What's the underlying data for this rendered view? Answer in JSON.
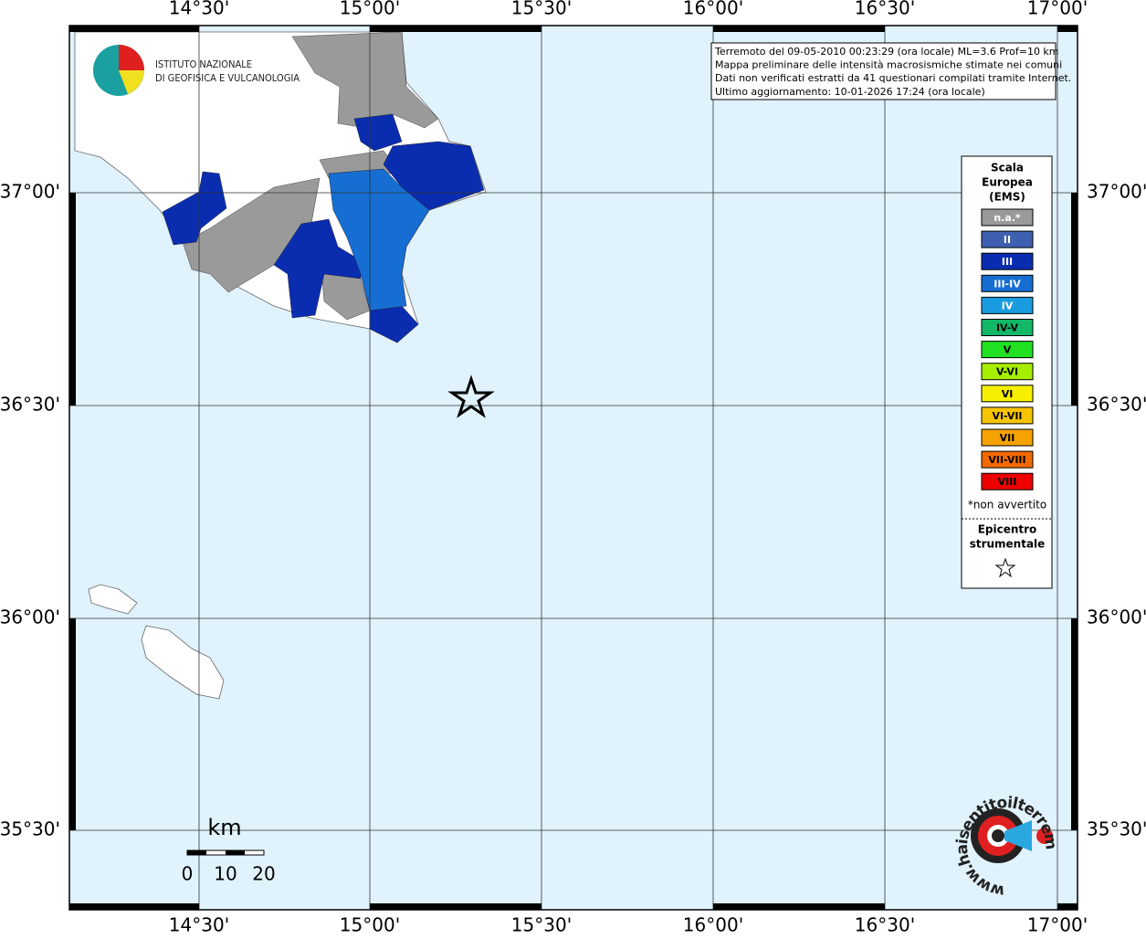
{
  "header": {
    "institute": [
      "ISTITUTO NAZIONALE",
      "DI GEOFISICA E VULCANOLOGIA"
    ]
  },
  "info": [
    "Terremoto del 09-05-2010 00:23:29 (ora locale) ML=3.6 Prof=10 km",
    "Mappa preliminare delle intensità macrosismiche stimate nei comuni",
    "Dati non verificati estratti da 41 questionari compilati tramite Internet.",
    "Ultimo aggiornamento: 10-01-2026 17:24 (ora locale)"
  ],
  "map": {
    "lon_labels": [
      "14°30'",
      "15°00'",
      "15°30'",
      "16°00'",
      "16°30'",
      "17°00'"
    ],
    "lat_labels": [
      "37°00'",
      "36°30'",
      "36°00'",
      "35°30'"
    ]
  },
  "legend": {
    "title": [
      "Scala",
      "Europea",
      "(EMS)"
    ],
    "entries": [
      {
        "label": "n.a.*",
        "color": "#9a9a9a"
      },
      {
        "label": "II",
        "color": "#3f5fb0"
      },
      {
        "label": "III",
        "color": "#0a2db0"
      },
      {
        "label": "III-IV",
        "color": "#166ed2"
      },
      {
        "label": "IV",
        "color": "#1a9ce0"
      },
      {
        "label": "IV-V",
        "color": "#12b868"
      },
      {
        "label": "V",
        "color": "#22e022"
      },
      {
        "label": "V-VI",
        "color": "#a6ee00"
      },
      {
        "label": "VI",
        "color": "#f6f000"
      },
      {
        "label": "VI-VII",
        "color": "#f6c400"
      },
      {
        "label": "VII",
        "color": "#f6a200"
      },
      {
        "label": "VII-VIII",
        "color": "#f46a00"
      },
      {
        "label": "VIII",
        "color": "#ee0000"
      }
    ],
    "note": "*non avvertito",
    "epicenter": [
      "Epicentro",
      "strumentale"
    ]
  },
  "scale_bar": {
    "unit": "km",
    "labels": [
      "0",
      "10",
      "20"
    ]
  },
  "site_logo": "www.haisentitoilterremoto.it"
}
